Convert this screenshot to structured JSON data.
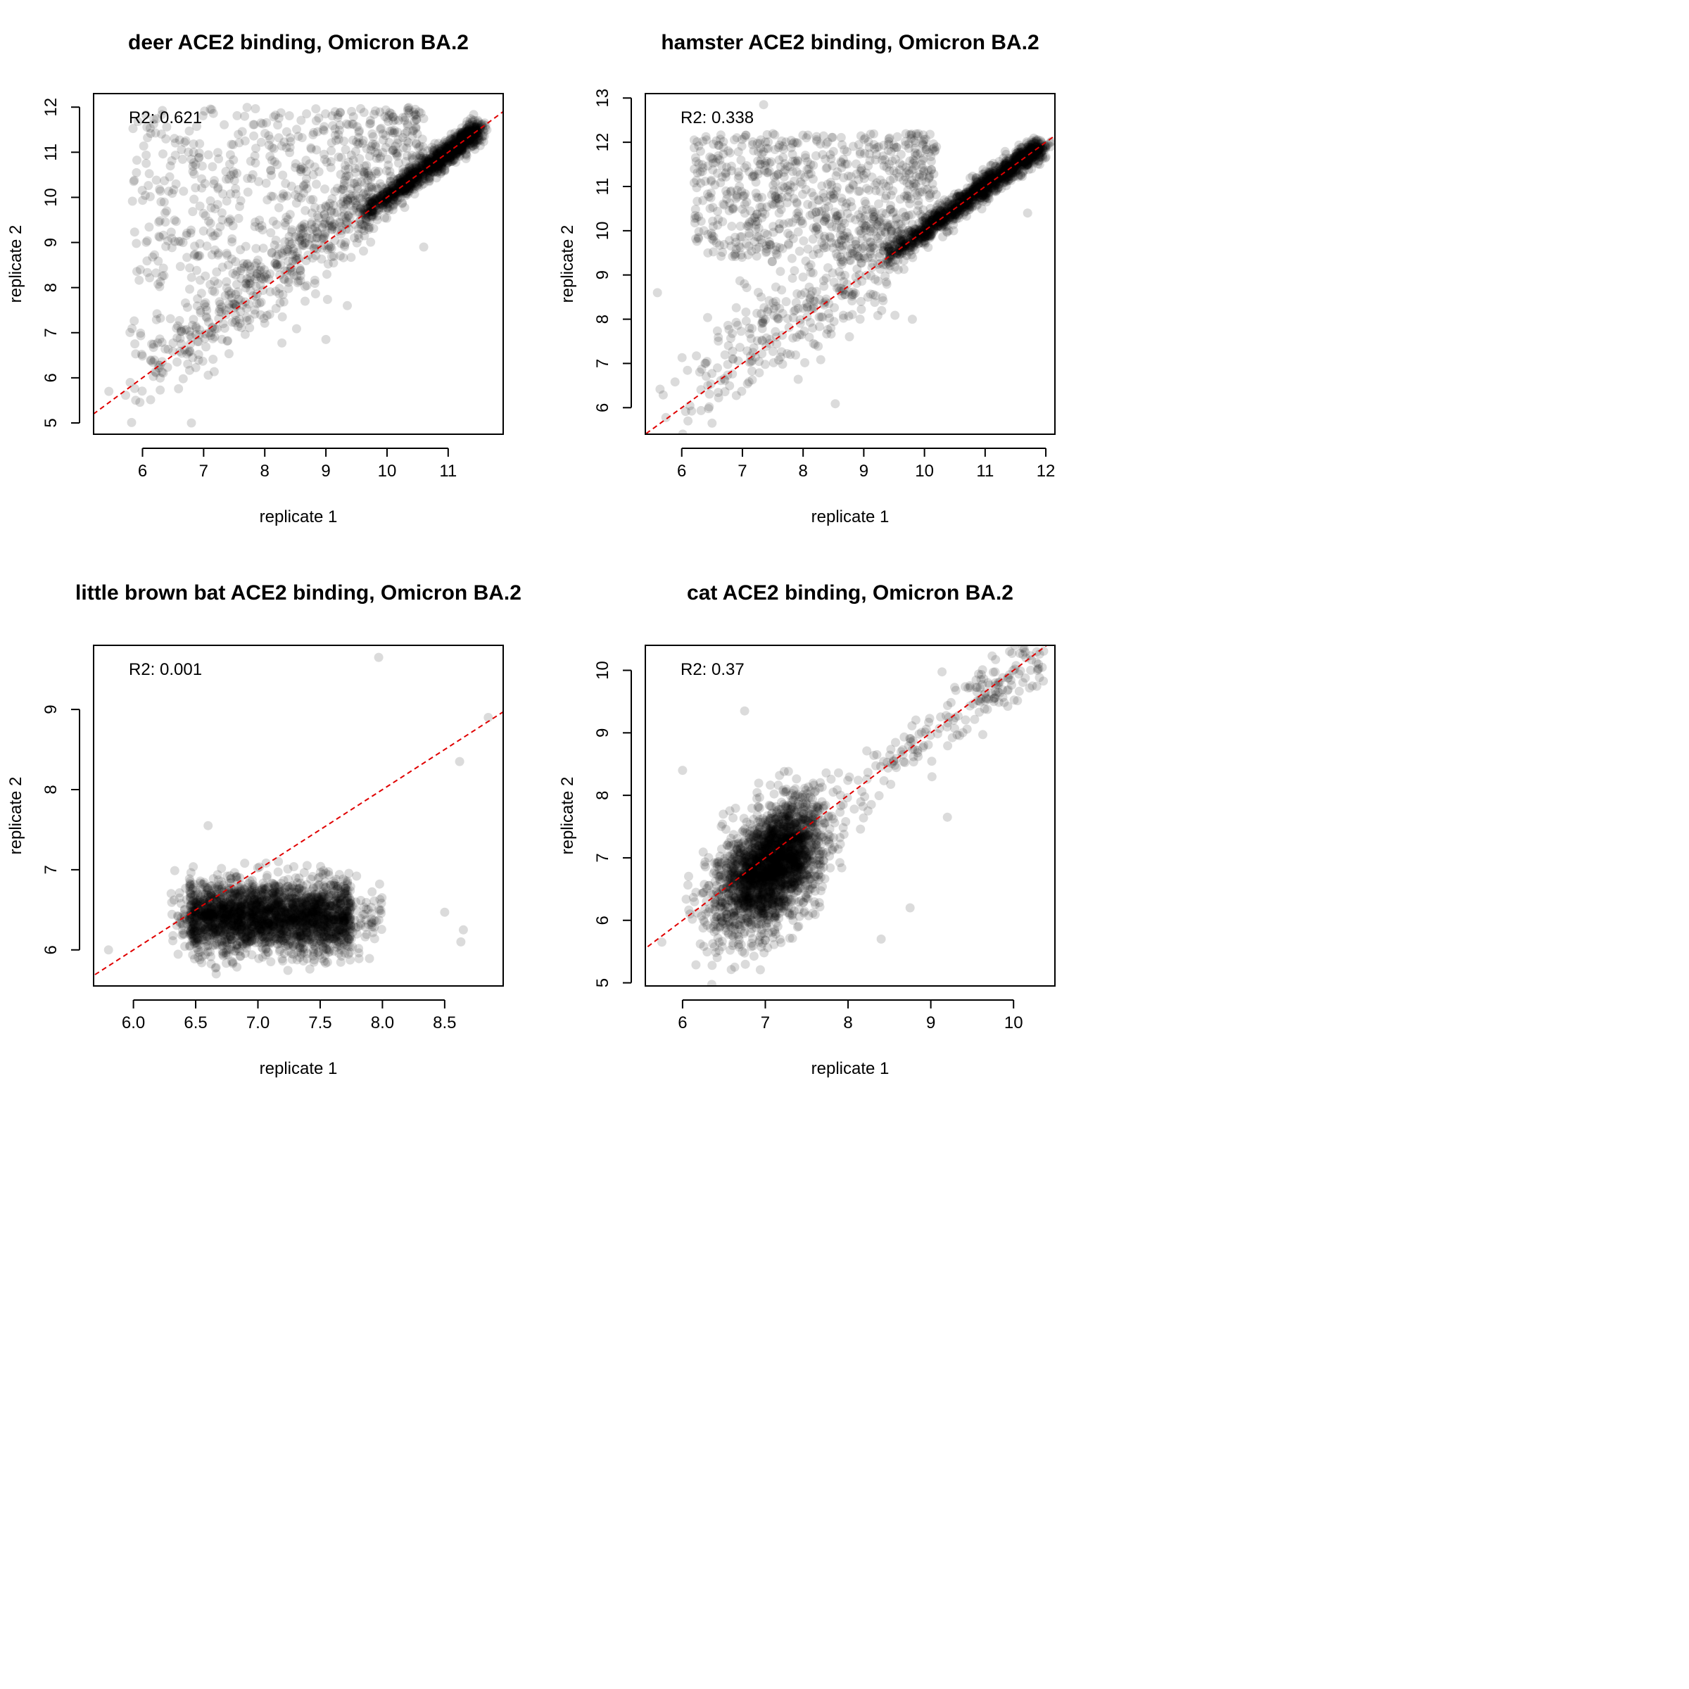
{
  "figure": {
    "layout": "2x2 grid"
  },
  "chart_data": [
    {
      "type": "scatter",
      "title": "deer ACE2 binding, Omicron BA.2",
      "xlabel": "replicate 1",
      "ylabel": "replicate 2",
      "annotation": "R2: 0.621",
      "xlim": [
        5.2,
        11.9
      ],
      "ylim": [
        4.75,
        12.3
      ],
      "xticks": [
        6,
        7,
        8,
        9,
        10,
        11
      ],
      "yticks": [
        5,
        6,
        7,
        8,
        9,
        10,
        11,
        12
      ],
      "xtick_labels": [
        "6",
        "7",
        "8",
        "9",
        "10",
        "11"
      ],
      "ytick_labels": [
        "5",
        "6",
        "7",
        "8",
        "9",
        "10",
        "11",
        "12"
      ],
      "reference_line": {
        "type": "y=x",
        "style": "dashed",
        "color": "#e00000"
      },
      "point_color": "#000000",
      "point_opacity": 0.14,
      "n_points": 2300,
      "clusters": [
        {
          "share": 0.55,
          "kind": "diagonal",
          "x_range": [
            9.6,
            11.5
          ],
          "dy_sd": 0.12,
          "dx_sd": 0.08
        },
        {
          "share": 0.2,
          "kind": "diagonal",
          "x_range": [
            5.6,
            9.8
          ],
          "dy_sd": 0.45,
          "dx_sd": 0.05,
          "above_bias": 0.35
        },
        {
          "share": 0.25,
          "kind": "cloud",
          "x_range": [
            5.8,
            10.6
          ],
          "y_range": [
            8.0,
            12.0
          ],
          "above_diagonal": true
        }
      ],
      "highlight_points": [
        [
          6.8,
          5.0
        ],
        [
          5.45,
          5.7
        ],
        [
          9.35,
          7.6
        ],
        [
          10.6,
          8.9
        ],
        [
          9.0,
          6.85
        ],
        [
          11.2,
          11.4
        ]
      ]
    },
    {
      "type": "scatter",
      "title": "hamster ACE2 binding, Omicron BA.2",
      "xlabel": "replicate 1",
      "ylabel": "replicate 2",
      "annotation": "R2: 0.338",
      "xlim": [
        5.4,
        12.15
      ],
      "ylim": [
        5.4,
        13.1
      ],
      "xticks": [
        6,
        7,
        8,
        9,
        10,
        11,
        12
      ],
      "yticks": [
        6,
        7,
        8,
        9,
        10,
        11,
        12,
        13
      ],
      "xtick_labels": [
        "6",
        "7",
        "8",
        "9",
        "10",
        "11",
        "12"
      ],
      "ytick_labels": [
        "6",
        "7",
        "8",
        "9",
        "10",
        "11",
        "12",
        "13"
      ],
      "reference_line": {
        "type": "y=x",
        "style": "dashed",
        "color": "#e00000"
      },
      "point_color": "#000000",
      "point_opacity": 0.14,
      "n_points": 2600,
      "clusters": [
        {
          "share": 0.58,
          "kind": "diagonal",
          "x_range": [
            9.4,
            11.9
          ],
          "dy_sd": 0.12,
          "dx_sd": 0.08
        },
        {
          "share": 0.14,
          "kind": "diagonal",
          "x_range": [
            5.6,
            9.6
          ],
          "dy_sd": 0.55,
          "dx_sd": 0.05,
          "above_bias": 0.6
        },
        {
          "share": 0.28,
          "kind": "cloud",
          "x_range": [
            6.2,
            10.2
          ],
          "y_range": [
            9.4,
            12.2
          ],
          "above_diagonal": true
        }
      ],
      "highlight_points": [
        [
          7.35,
          12.85
        ],
        [
          11.7,
          10.4
        ],
        [
          6.5,
          5.65
        ],
        [
          9.8,
          8.0
        ],
        [
          5.6,
          8.6
        ],
        [
          11.9,
          11.5
        ]
      ]
    },
    {
      "type": "scatter",
      "title": "little brown bat ACE2 binding, Omicron BA.2",
      "xlabel": "replicate 1",
      "ylabel": "replicate 2",
      "annotation": "R2: 0.001",
      "xlim": [
        5.68,
        8.97
      ],
      "ylim": [
        5.55,
        9.8
      ],
      "xticks": [
        6.0,
        6.5,
        7.0,
        7.5,
        8.0,
        8.5
      ],
      "yticks": [
        6,
        7,
        8,
        9
      ],
      "xtick_labels": [
        "6.0",
        "6.5",
        "7.0",
        "7.5",
        "8.0",
        "8.5"
      ],
      "ytick_labels": [
        "6",
        "7",
        "8",
        "9"
      ],
      "reference_line": {
        "type": "y=x",
        "style": "dashed",
        "color": "#e00000"
      },
      "point_color": "#000000",
      "point_opacity": 0.14,
      "n_points": 2600,
      "clusters": [
        {
          "share": 1.0,
          "kind": "cloud",
          "x_range": [
            6.3,
            7.85
          ],
          "y_center": 6.42,
          "y_sd": 0.22
        }
      ],
      "highlight_points": [
        [
          7.97,
          9.65
        ],
        [
          8.85,
          8.9
        ],
        [
          8.62,
          8.35
        ],
        [
          5.8,
          6.0
        ],
        [
          8.5,
          6.47
        ],
        [
          8.65,
          6.25
        ],
        [
          8.63,
          6.1
        ],
        [
          6.6,
          7.55
        ]
      ]
    },
    {
      "type": "scatter",
      "title": "cat ACE2 binding, Omicron BA.2",
      "xlabel": "replicate 1",
      "ylabel": "replicate 2",
      "annotation": "R2: 0.37",
      "xlim": [
        5.55,
        10.5
      ],
      "ylim": [
        4.95,
        10.4
      ],
      "xticks": [
        6,
        7,
        8,
        9,
        10
      ],
      "yticks": [
        5,
        6,
        7,
        8,
        9,
        10
      ],
      "xtick_labels": [
        "6",
        "7",
        "8",
        "9",
        "10"
      ],
      "ytick_labels": [
        "5",
        "6",
        "7",
        "8",
        "9",
        "10"
      ],
      "reference_line": {
        "type": "y=x",
        "style": "dashed",
        "color": "#e00000"
      },
      "point_color": "#000000",
      "point_opacity": 0.14,
      "n_points": 2700,
      "clusters": [
        {
          "share": 0.93,
          "kind": "regression",
          "x_range": [
            6.0,
            8.1
          ],
          "slope": 0.75,
          "intercept": 1.55,
          "y_sd": 0.45
        },
        {
          "share": 0.07,
          "kind": "diagonal",
          "x_range": [
            8.0,
            10.3
          ],
          "dy_sd": 0.25,
          "dx_sd": 0.08,
          "above_bias": 0.0
        }
      ],
      "highlight_points": [
        [
          10.3,
          10.1
        ],
        [
          10.15,
          10.2
        ],
        [
          6.75,
          9.35
        ],
        [
          9.2,
          7.65
        ],
        [
          8.75,
          6.2
        ],
        [
          8.4,
          5.7
        ],
        [
          5.75,
          5.65
        ],
        [
          6.0,
          8.4
        ]
      ]
    }
  ]
}
